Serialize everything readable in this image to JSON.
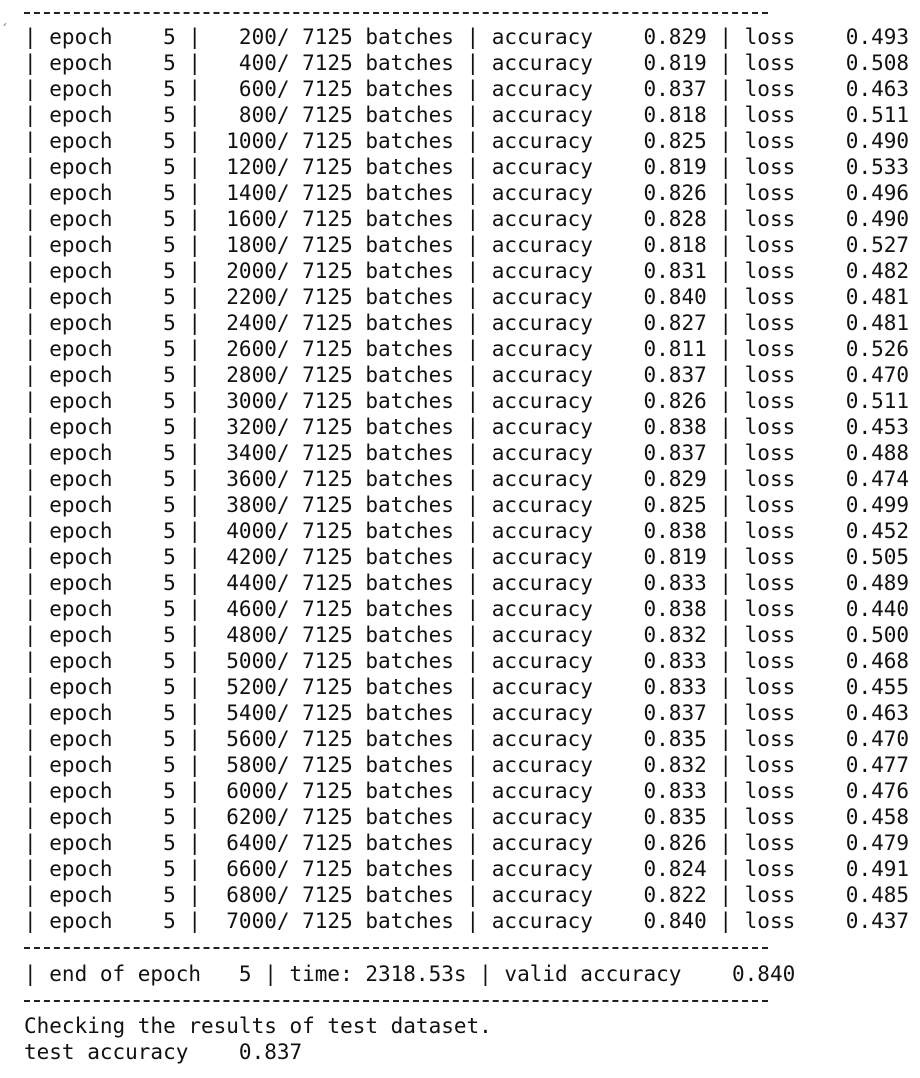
{
  "terminal": {
    "corner_mark": "´",
    "epoch": 5,
    "total_batches": 7125,
    "rows": [
      {
        "batch": 200,
        "accuracy": "0.829",
        "loss": "0.493"
      },
      {
        "batch": 400,
        "accuracy": "0.819",
        "loss": "0.508"
      },
      {
        "batch": 600,
        "accuracy": "0.837",
        "loss": "0.463"
      },
      {
        "batch": 800,
        "accuracy": "0.818",
        "loss": "0.511"
      },
      {
        "batch": 1000,
        "accuracy": "0.825",
        "loss": "0.490"
      },
      {
        "batch": 1200,
        "accuracy": "0.819",
        "loss": "0.533"
      },
      {
        "batch": 1400,
        "accuracy": "0.826",
        "loss": "0.496"
      },
      {
        "batch": 1600,
        "accuracy": "0.828",
        "loss": "0.490"
      },
      {
        "batch": 1800,
        "accuracy": "0.818",
        "loss": "0.527"
      },
      {
        "batch": 2000,
        "accuracy": "0.831",
        "loss": "0.482"
      },
      {
        "batch": 2200,
        "accuracy": "0.840",
        "loss": "0.481"
      },
      {
        "batch": 2400,
        "accuracy": "0.827",
        "loss": "0.481"
      },
      {
        "batch": 2600,
        "accuracy": "0.811",
        "loss": "0.526"
      },
      {
        "batch": 2800,
        "accuracy": "0.837",
        "loss": "0.470"
      },
      {
        "batch": 3000,
        "accuracy": "0.826",
        "loss": "0.511"
      },
      {
        "batch": 3200,
        "accuracy": "0.838",
        "loss": "0.453"
      },
      {
        "batch": 3400,
        "accuracy": "0.837",
        "loss": "0.488"
      },
      {
        "batch": 3600,
        "accuracy": "0.829",
        "loss": "0.474"
      },
      {
        "batch": 3800,
        "accuracy": "0.825",
        "loss": "0.499"
      },
      {
        "batch": 4000,
        "accuracy": "0.838",
        "loss": "0.452"
      },
      {
        "batch": 4200,
        "accuracy": "0.819",
        "loss": "0.505"
      },
      {
        "batch": 4400,
        "accuracy": "0.833",
        "loss": "0.489"
      },
      {
        "batch": 4600,
        "accuracy": "0.838",
        "loss": "0.440"
      },
      {
        "batch": 4800,
        "accuracy": "0.832",
        "loss": "0.500"
      },
      {
        "batch": 5000,
        "accuracy": "0.833",
        "loss": "0.468"
      },
      {
        "batch": 5200,
        "accuracy": "0.833",
        "loss": "0.455"
      },
      {
        "batch": 5400,
        "accuracy": "0.837",
        "loss": "0.463"
      },
      {
        "batch": 5600,
        "accuracy": "0.835",
        "loss": "0.470"
      },
      {
        "batch": 5800,
        "accuracy": "0.832",
        "loss": "0.477"
      },
      {
        "batch": 6000,
        "accuracy": "0.833",
        "loss": "0.476"
      },
      {
        "batch": 6200,
        "accuracy": "0.835",
        "loss": "0.458"
      },
      {
        "batch": 6400,
        "accuracy": "0.826",
        "loss": "0.479"
      },
      {
        "batch": 6600,
        "accuracy": "0.824",
        "loss": "0.491"
      },
      {
        "batch": 6800,
        "accuracy": "0.822",
        "loss": "0.485"
      },
      {
        "batch": 7000,
        "accuracy": "0.840",
        "loss": "0.437"
      }
    ],
    "row_lines": [],
    "summary_line": "| end of epoch   5 | time: 2318.53s | valid accuracy    0.840",
    "test_message": "Checking the results of test dataset.",
    "test_result": "test accuracy    0.837"
  }
}
